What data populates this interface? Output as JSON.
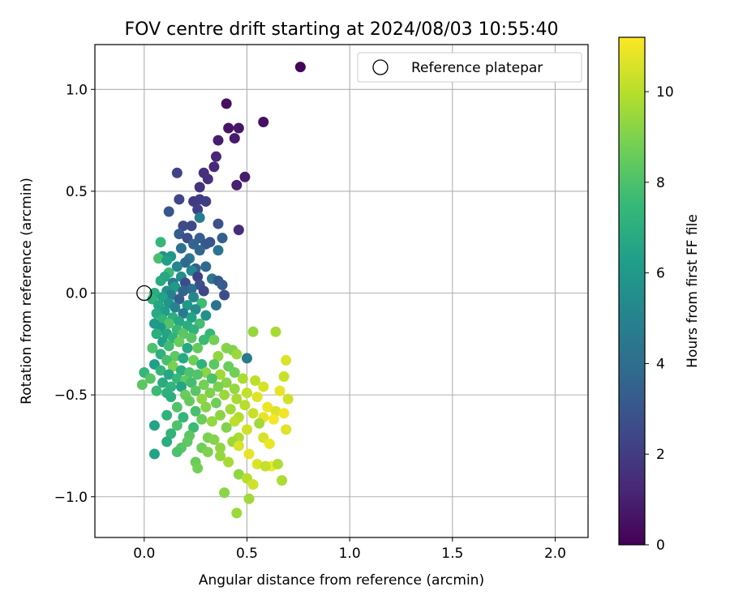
{
  "chart_data": {
    "type": "scatter",
    "title": "FOV centre drift starting at 2024/08/03 10:55:40",
    "xlabel": "Angular distance from reference (arcmin)",
    "ylabel": "Rotation from reference (arcmin)",
    "xlim": [
      -0.24,
      2.16
    ],
    "ylim": [
      -1.2,
      1.22
    ],
    "xticks": [
      0.0,
      0.5,
      1.0,
      1.5,
      2.0
    ],
    "xtick_labels": [
      "0.0",
      "0.5",
      "1.0",
      "1.5",
      "2.0"
    ],
    "yticks": [
      -1.0,
      -0.5,
      0.0,
      0.5,
      1.0
    ],
    "ytick_labels": [
      "−1.0",
      "−0.5",
      "0.0",
      "0.5",
      "1.0"
    ],
    "grid": true,
    "legend": {
      "position": "top-right",
      "entries": [
        "Reference platepar"
      ]
    },
    "reference_point": {
      "x": 0.0,
      "y": 0.0
    },
    "colorbar": {
      "label": "Hours from first FF file",
      "colormap": "viridis",
      "range": [
        0,
        11.2
      ],
      "ticks": [
        0,
        2,
        4,
        6,
        8,
        10
      ],
      "tick_labels": [
        "0",
        "2",
        "4",
        "6",
        "8",
        "10"
      ]
    },
    "colors": {
      "axes": "#000000",
      "grid": "#b0b0b0",
      "viridis": [
        "#440154",
        "#482878",
        "#3e4989",
        "#31688e",
        "#26828e",
        "#1f9e89",
        "#35b779",
        "#6ece58",
        "#b5de2b",
        "#fde725"
      ]
    },
    "points": [
      [
        0.76,
        1.11,
        0.1
      ],
      [
        0.4,
        0.93,
        0.4
      ],
      [
        0.58,
        0.84,
        0.5
      ],
      [
        0.41,
        0.81,
        0.6
      ],
      [
        0.46,
        0.81,
        0.7
      ],
      [
        0.44,
        0.76,
        0.8
      ],
      [
        0.36,
        0.75,
        0.9
      ],
      [
        0.35,
        0.67,
        1.2
      ],
      [
        0.34,
        0.62,
        1.3
      ],
      [
        0.49,
        0.57,
        0.9
      ],
      [
        0.29,
        0.59,
        1.5
      ],
      [
        0.16,
        0.59,
        2.3
      ],
      [
        0.31,
        0.56,
        1.6
      ],
      [
        0.45,
        0.53,
        1.0
      ],
      [
        0.27,
        0.52,
        1.7
      ],
      [
        0.24,
        0.45,
        1.9
      ],
      [
        0.27,
        0.46,
        2.0
      ],
      [
        0.17,
        0.46,
        2.4
      ],
      [
        0.3,
        0.45,
        2.1
      ],
      [
        0.26,
        0.41,
        2.2
      ],
      [
        0.12,
        0.4,
        3.0
      ],
      [
        0.27,
        0.37,
        4.8
      ],
      [
        0.19,
        0.33,
        2.6
      ],
      [
        0.23,
        0.33,
        2.5
      ],
      [
        0.36,
        0.34,
        2.8
      ],
      [
        0.46,
        0.31,
        1.4
      ],
      [
        0.17,
        0.29,
        3.2
      ],
      [
        0.21,
        0.27,
        2.7
      ],
      [
        0.27,
        0.27,
        3.3
      ],
      [
        0.32,
        0.25,
        2.9
      ],
      [
        0.38,
        0.27,
        3.4
      ],
      [
        0.08,
        0.25,
        7.4
      ],
      [
        0.24,
        0.24,
        3.6
      ],
      [
        0.3,
        0.24,
        3.1
      ],
      [
        0.18,
        0.22,
        4.1
      ],
      [
        0.27,
        0.21,
        3.7
      ],
      [
        0.36,
        0.21,
        4.3
      ],
      [
        0.09,
        0.18,
        5.6
      ],
      [
        0.13,
        0.18,
        5.9
      ],
      [
        0.22,
        0.17,
        4.4
      ],
      [
        0.07,
        0.17,
        7.9
      ],
      [
        0.11,
        0.16,
        6.3
      ],
      [
        0.2,
        0.15,
        3.9
      ],
      [
        0.16,
        0.13,
        5.1
      ],
      [
        0.25,
        0.12,
        3.5
      ],
      [
        0.3,
        0.13,
        3.8
      ],
      [
        0.23,
        0.11,
        5.3
      ],
      [
        0.12,
        0.1,
        7.6
      ],
      [
        0.1,
        0.08,
        6.6
      ],
      [
        0.18,
        0.08,
        5.5
      ],
      [
        0.26,
        0.08,
        2.2
      ],
      [
        0.33,
        0.07,
        4.5
      ],
      [
        0.36,
        0.06,
        3.1
      ],
      [
        0.08,
        0.06,
        6.8
      ],
      [
        0.14,
        0.05,
        4.7
      ],
      [
        0.2,
        0.05,
        2.6
      ],
      [
        0.27,
        0.04,
        2.8
      ],
      [
        0.38,
        0.04,
        3.3
      ],
      [
        0.15,
        0.03,
        6.1
      ],
      [
        0.23,
        0.02,
        4.0
      ],
      [
        0.11,
        0.01,
        5.7
      ],
      [
        0.19,
        0.01,
        3.6
      ],
      [
        0.29,
        0.01,
        2.4
      ],
      [
        0.05,
        0.0,
        6.9
      ],
      [
        0.13,
        -0.01,
        4.9
      ],
      [
        0.24,
        -0.02,
        5.2
      ],
      [
        0.39,
        -0.01,
        2.7
      ],
      [
        0.09,
        -0.02,
        6.4
      ],
      [
        0.17,
        -0.03,
        3.4
      ],
      [
        0.04,
        -0.03,
        7.2
      ],
      [
        0.28,
        -0.05,
        7.7
      ],
      [
        0.35,
        -0.06,
        4.2
      ],
      [
        0.12,
        -0.05,
        5.8
      ],
      [
        0.21,
        -0.06,
        6.0
      ],
      [
        0.07,
        -0.06,
        6.6
      ],
      [
        0.15,
        -0.07,
        5.0
      ],
      [
        0.25,
        -0.08,
        5.4
      ],
      [
        0.1,
        -0.09,
        6.2
      ],
      [
        0.19,
        -0.1,
        4.6
      ],
      [
        0.06,
        -0.1,
        6.8
      ],
      [
        0.14,
        -0.12,
        7.0
      ],
      [
        0.23,
        -0.12,
        6.4
      ],
      [
        0.3,
        -0.11,
        5.6
      ],
      [
        0.09,
        -0.13,
        7.3
      ],
      [
        0.17,
        -0.14,
        6.7
      ],
      [
        0.05,
        -0.15,
        6.1
      ],
      [
        0.12,
        -0.15,
        8.1
      ],
      [
        0.21,
        -0.16,
        6.9
      ],
      [
        0.27,
        -0.15,
        7.8
      ],
      [
        0.08,
        -0.17,
        5.9
      ],
      [
        0.16,
        -0.18,
        7.5
      ],
      [
        0.24,
        -0.18,
        7.1
      ],
      [
        0.11,
        -0.2,
        6.5
      ],
      [
        0.19,
        -0.2,
        8.3
      ],
      [
        0.32,
        -0.2,
        7.4
      ],
      [
        0.06,
        -0.2,
        7.0
      ],
      [
        0.14,
        -0.22,
        7.2
      ],
      [
        0.23,
        -0.22,
        8.2
      ],
      [
        0.29,
        -0.23,
        7.6
      ],
      [
        0.09,
        -0.24,
        6.3
      ],
      [
        0.17,
        -0.24,
        8.6
      ],
      [
        0.53,
        -0.19,
        9.4
      ],
      [
        0.64,
        -0.19,
        9.7
      ],
      [
        0.34,
        -0.23,
        8.8
      ],
      [
        0.4,
        -0.27,
        9.1
      ],
      [
        0.12,
        -0.26,
        7.7
      ],
      [
        0.21,
        -0.27,
        6.7
      ],
      [
        0.04,
        -0.27,
        8.0
      ],
      [
        0.26,
        -0.27,
        8.5
      ],
      [
        0.43,
        -0.28,
        9.0
      ],
      [
        0.08,
        -0.3,
        7.1
      ],
      [
        0.15,
        -0.31,
        8.4
      ],
      [
        0.36,
        -0.31,
        9.3
      ],
      [
        0.45,
        -0.3,
        9.5
      ],
      [
        0.19,
        -0.32,
        6.8
      ],
      [
        0.5,
        -0.32,
        4.6
      ],
      [
        0.11,
        -0.33,
        7.9
      ],
      [
        0.24,
        -0.33,
        8.7
      ],
      [
        0.28,
        -0.35,
        7.2
      ],
      [
        0.05,
        -0.35,
        6.2
      ],
      [
        0.14,
        -0.36,
        8.9
      ],
      [
        0.34,
        -0.35,
        8.3
      ],
      [
        0.41,
        -0.36,
        8.6
      ],
      [
        0.08,
        -0.38,
        7.3
      ],
      [
        0.18,
        -0.38,
        7.0
      ],
      [
        0.22,
        -0.39,
        8.0
      ],
      [
        0.3,
        -0.39,
        9.2
      ],
      [
        0.44,
        -0.39,
        8.7
      ],
      [
        0.69,
        -0.33,
        10.6
      ],
      [
        0.0,
        -0.39,
        7.4
      ],
      [
        0.12,
        -0.4,
        6.6
      ],
      [
        0.26,
        -0.4,
        8.1
      ],
      [
        0.37,
        -0.4,
        9.6
      ],
      [
        0.03,
        -0.42,
        8.2
      ],
      [
        0.16,
        -0.42,
        7.5
      ],
      [
        0.2,
        -0.43,
        8.4
      ],
      [
        0.33,
        -0.42,
        8.0
      ],
      [
        0.48,
        -0.42,
        9.8
      ],
      [
        0.68,
        -0.41,
        10.3
      ],
      [
        0.09,
        -0.44,
        6.9
      ],
      [
        0.23,
        -0.44,
        7.8
      ],
      [
        0.29,
        -0.45,
        8.8
      ],
      [
        0.4,
        -0.44,
        9.2
      ],
      [
        0.54,
        -0.43,
        10.1
      ],
      [
        -0.01,
        -0.45,
        8.3
      ],
      [
        0.13,
        -0.46,
        7.3
      ],
      [
        0.18,
        -0.46,
        6.5
      ],
      [
        0.36,
        -0.46,
        8.9
      ],
      [
        0.44,
        -0.47,
        9.4
      ],
      [
        0.58,
        -0.46,
        10.5
      ],
      [
        0.06,
        -0.48,
        7.6
      ],
      [
        0.25,
        -0.48,
        8.2
      ],
      [
        0.32,
        -0.49,
        9.0
      ],
      [
        0.66,
        -0.48,
        10.8
      ],
      [
        0.11,
        -0.49,
        7.1
      ],
      [
        0.2,
        -0.5,
        8.6
      ],
      [
        0.39,
        -0.5,
        9.5
      ],
      [
        0.5,
        -0.49,
        10.2
      ],
      [
        0.13,
        -0.51,
        7.0
      ],
      [
        0.28,
        -0.52,
        9.3
      ],
      [
        0.45,
        -0.52,
        9.7
      ],
      [
        0.55,
        -0.51,
        10.7
      ],
      [
        0.7,
        -0.52,
        10.4
      ],
      [
        0.22,
        -0.53,
        8.5
      ],
      [
        0.35,
        -0.54,
        8.7
      ],
      [
        0.49,
        -0.55,
        10.0
      ],
      [
        0.6,
        -0.56,
        10.9
      ],
      [
        0.16,
        -0.56,
        8.1
      ],
      [
        0.3,
        -0.56,
        9.1
      ],
      [
        0.42,
        -0.57,
        9.6
      ],
      [
        0.64,
        -0.58,
        10.6
      ],
      [
        0.25,
        -0.58,
        7.9
      ],
      [
        0.53,
        -0.59,
        10.3
      ],
      [
        0.68,
        -0.59,
        11.0
      ],
      [
        0.11,
        -0.6,
        7.2
      ],
      [
        0.19,
        -0.61,
        7.4
      ],
      [
        0.37,
        -0.6,
        9.2
      ],
      [
        0.46,
        -0.61,
        9.9
      ],
      [
        0.58,
        -0.61,
        10.8
      ],
      [
        0.28,
        -0.62,
        8.6
      ],
      [
        0.33,
        -0.63,
        9.4
      ],
      [
        0.44,
        -0.63,
        10.1
      ],
      [
        0.63,
        -0.62,
        11.1
      ],
      [
        0.56,
        -0.64,
        9.6
      ],
      [
        0.05,
        -0.65,
        6.4
      ],
      [
        0.16,
        -0.65,
        8.0
      ],
      [
        0.24,
        -0.66,
        7.6
      ],
      [
        0.4,
        -0.66,
        9.0
      ],
      [
        0.5,
        -0.67,
        10.4
      ],
      [
        0.69,
        -0.67,
        10.7
      ],
      [
        0.13,
        -0.69,
        7.3
      ],
      [
        0.22,
        -0.7,
        8.3
      ],
      [
        0.31,
        -0.71,
        8.9
      ],
      [
        0.46,
        -0.71,
        9.8
      ],
      [
        0.58,
        -0.71,
        10.5
      ],
      [
        0.11,
        -0.73,
        6.9
      ],
      [
        0.21,
        -0.73,
        8.4
      ],
      [
        0.34,
        -0.72,
        9.1
      ],
      [
        0.43,
        -0.73,
        9.5
      ],
      [
        0.61,
        -0.74,
        10.9
      ],
      [
        0.18,
        -0.76,
        8.2
      ],
      [
        0.28,
        -0.76,
        8.7
      ],
      [
        0.37,
        -0.76,
        9.3
      ],
      [
        0.46,
        -0.75,
        10.6
      ],
      [
        0.16,
        -0.78,
        8.0
      ],
      [
        0.31,
        -0.78,
        9.0
      ],
      [
        0.05,
        -0.79,
        6.4
      ],
      [
        0.51,
        -0.79,
        10.8
      ],
      [
        0.37,
        -0.8,
        9.4
      ],
      [
        0.25,
        -0.83,
        8.6
      ],
      [
        0.41,
        -0.83,
        9.7
      ],
      [
        0.55,
        -0.84,
        10.6
      ],
      [
        0.62,
        -0.85,
        11.0
      ],
      [
        0.26,
        -0.86,
        8.8
      ],
      [
        0.59,
        -0.85,
        10.2
      ],
      [
        0.65,
        -0.84,
        9.9
      ],
      [
        0.46,
        -0.89,
        9.3
      ],
      [
        0.5,
        -0.91,
        10.0
      ],
      [
        0.53,
        -0.94,
        10.4
      ],
      [
        0.67,
        -0.92,
        9.8
      ],
      [
        0.39,
        -0.98,
        9.2
      ],
      [
        0.51,
        -1.01,
        9.6
      ],
      [
        0.45,
        -1.08,
        9.5
      ]
    ]
  }
}
